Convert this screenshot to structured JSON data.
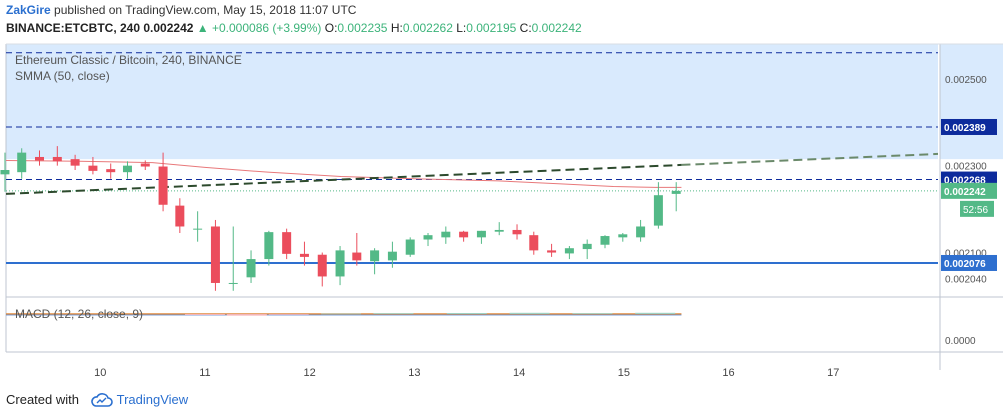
{
  "header": {
    "author": "ZakGire",
    "published": "published on TradingView.com, May 15, 2018 11:07 UTC",
    "symbol": "BINANCE:ETCBTC, 240",
    "last": "0.002242",
    "change": "▲ +0.000086 (+3.99%)",
    "o_label": "O:",
    "o_value": "0.002235",
    "h_label": "H:",
    "h_value": "0.002262",
    "l_label": "L:",
    "l_value": "0.002195",
    "c_label": "C:",
    "c_value": "0.002242"
  },
  "legend": {
    "title": "Ethereum Classic / Bitcoin, 240, BINANCE",
    "smma": "SMMA (50, close)",
    "macd": "MACD (12, 26, close, 9)"
  },
  "footer": {
    "created_with": "Created with",
    "brand": "TradingView"
  },
  "colors": {
    "up": "#53b987",
    "down": "#eb4d5c",
    "smma": "#e8787a",
    "zone": "#d9eafd",
    "level": "#0d2b9c",
    "support": "#2e6fcf",
    "trend": "#2d4a2d",
    "accent": "#2a6fcf"
  },
  "chart_data": {
    "type": "candlestick",
    "title": "Ethereum Classic / Bitcoin, 240, BINANCE",
    "xlabel": "",
    "ylabel": "",
    "ylim": [
      0.002,
      0.00258
    ],
    "y_ticks": [
      "0.002500",
      "0.002300",
      "0.002100",
      "0.002040"
    ],
    "x_ticks": [
      {
        "label": "10",
        "x": 10
      },
      {
        "label": "11",
        "x": 11
      },
      {
        "label": "12",
        "x": 12
      },
      {
        "label": "13",
        "x": 13
      },
      {
        "label": "14",
        "x": 14
      },
      {
        "label": "15",
        "x": 15
      },
      {
        "label": "16",
        "x": 16
      },
      {
        "label": "17",
        "x": 17
      }
    ],
    "xlim": [
      9.1,
      18.0
    ],
    "candles": [
      {
        "x": 9.09,
        "o": 0.00228,
        "h": 0.00233,
        "l": 0.00224,
        "c": 0.00229
      },
      {
        "x": 9.25,
        "o": 0.002285,
        "h": 0.00234,
        "l": 0.00227,
        "c": 0.00233
      },
      {
        "x": 9.42,
        "o": 0.00232,
        "h": 0.002335,
        "l": 0.0023,
        "c": 0.002312
      },
      {
        "x": 9.59,
        "o": 0.00232,
        "h": 0.002345,
        "l": 0.0023,
        "c": 0.00231
      },
      {
        "x": 9.76,
        "o": 0.002315,
        "h": 0.002325,
        "l": 0.00229,
        "c": 0.0023
      },
      {
        "x": 9.93,
        "o": 0.0023,
        "h": 0.00232,
        "l": 0.00228,
        "c": 0.002288
      },
      {
        "x": 10.1,
        "o": 0.002292,
        "h": 0.002305,
        "l": 0.00227,
        "c": 0.002285
      },
      {
        "x": 10.26,
        "o": 0.002285,
        "h": 0.00231,
        "l": 0.00227,
        "c": 0.0023
      },
      {
        "x": 10.43,
        "o": 0.002305,
        "h": 0.002312,
        "l": 0.00229,
        "c": 0.002298
      },
      {
        "x": 10.6,
        "o": 0.002298,
        "h": 0.00233,
        "l": 0.002195,
        "c": 0.00221
      },
      {
        "x": 10.76,
        "o": 0.002208,
        "h": 0.002225,
        "l": 0.002145,
        "c": 0.00216
      },
      {
        "x": 10.93,
        "o": 0.002155,
        "h": 0.002195,
        "l": 0.002125,
        "c": 0.002155
      },
      {
        "x": 11.1,
        "o": 0.00216,
        "h": 0.002175,
        "l": 0.002012,
        "c": 0.00203
      },
      {
        "x": 11.27,
        "o": 0.00203,
        "h": 0.00216,
        "l": 0.002012,
        "c": 0.00203
      },
      {
        "x": 11.44,
        "o": 0.002043,
        "h": 0.002105,
        "l": 0.00203,
        "c": 0.002085
      },
      {
        "x": 11.61,
        "o": 0.002085,
        "h": 0.00215,
        "l": 0.00207,
        "c": 0.002147
      },
      {
        "x": 11.78,
        "o": 0.002147,
        "h": 0.002155,
        "l": 0.002085,
        "c": 0.002097
      },
      {
        "x": 11.95,
        "o": 0.002097,
        "h": 0.002125,
        "l": 0.00207,
        "c": 0.00209
      },
      {
        "x": 12.12,
        "o": 0.002095,
        "h": 0.0021,
        "l": 0.002022,
        "c": 0.002045
      },
      {
        "x": 12.29,
        "o": 0.002045,
        "h": 0.002115,
        "l": 0.002025,
        "c": 0.002105
      },
      {
        "x": 12.45,
        "o": 0.0021,
        "h": 0.002145,
        "l": 0.00207,
        "c": 0.002082
      },
      {
        "x": 12.62,
        "o": 0.00208,
        "h": 0.00211,
        "l": 0.00205,
        "c": 0.002105
      },
      {
        "x": 12.79,
        "o": 0.002082,
        "h": 0.002125,
        "l": 0.002065,
        "c": 0.002102
      },
      {
        "x": 12.96,
        "o": 0.002095,
        "h": 0.002135,
        "l": 0.00209,
        "c": 0.00213
      },
      {
        "x": 13.13,
        "o": 0.00213,
        "h": 0.002145,
        "l": 0.002115,
        "c": 0.00214
      },
      {
        "x": 13.3,
        "o": 0.002135,
        "h": 0.00216,
        "l": 0.00212,
        "c": 0.002148
      },
      {
        "x": 13.47,
        "o": 0.002148,
        "h": 0.00215,
        "l": 0.002125,
        "c": 0.002135
      },
      {
        "x": 13.64,
        "o": 0.002135,
        "h": 0.00215,
        "l": 0.00212,
        "c": 0.00215
      },
      {
        "x": 13.81,
        "o": 0.002148,
        "h": 0.00217,
        "l": 0.00214,
        "c": 0.002152
      },
      {
        "x": 13.98,
        "o": 0.002152,
        "h": 0.002165,
        "l": 0.00213,
        "c": 0.002142
      },
      {
        "x": 14.14,
        "o": 0.00214,
        "h": 0.002148,
        "l": 0.002095,
        "c": 0.002105
      },
      {
        "x": 14.31,
        "o": 0.002105,
        "h": 0.00212,
        "l": 0.00209,
        "c": 0.0021
      },
      {
        "x": 14.48,
        "o": 0.002098,
        "h": 0.002115,
        "l": 0.002085,
        "c": 0.00211
      },
      {
        "x": 14.65,
        "o": 0.002108,
        "h": 0.00213,
        "l": 0.002085,
        "c": 0.00212
      },
      {
        "x": 14.82,
        "o": 0.002118,
        "h": 0.00214,
        "l": 0.00211,
        "c": 0.002138
      },
      {
        "x": 14.99,
        "o": 0.002135,
        "h": 0.002145,
        "l": 0.002125,
        "c": 0.002142
      },
      {
        "x": 15.16,
        "o": 0.002135,
        "h": 0.002175,
        "l": 0.002125,
        "c": 0.00216
      },
      {
        "x": 15.33,
        "o": 0.002162,
        "h": 0.002262,
        "l": 0.002155,
        "c": 0.002232
      },
      {
        "x": 15.5,
        "o": 0.002235,
        "h": 0.002262,
        "l": 0.002195,
        "c": 0.002242
      }
    ],
    "smma_line": {
      "name": "SMMA (50, close)",
      "points": [
        [
          9.1,
          0.002312
        ],
        [
          9.8,
          0.00231
        ],
        [
          10.5,
          0.002307
        ],
        [
          11.0,
          0.002296
        ],
        [
          11.6,
          0.002285
        ],
        [
          12.3,
          0.002275
        ],
        [
          13.0,
          0.00227
        ],
        [
          13.8,
          0.002265
        ],
        [
          14.4,
          0.002258
        ],
        [
          14.9,
          0.002252
        ],
        [
          15.3,
          0.00225
        ],
        [
          15.55,
          0.00225
        ]
      ]
    },
    "trend_line": {
      "name": "trend",
      "points": [
        [
          9.1,
          0.002235
        ],
        [
          18.0,
          0.002327
        ]
      ],
      "solid_until": 15.55
    },
    "resistance_zone": {
      "from": 0.002315,
      "to": 0.00258
    },
    "levels": [
      {
        "name": "top-dashed",
        "value": 0.00256,
        "label": ""
      },
      {
        "name": "resistance-level",
        "value": 0.002389,
        "label": "0.002389"
      },
      {
        "name": "current-level",
        "value": 0.002268,
        "label": "0.002268"
      }
    ],
    "support_line": {
      "value": 0.002076,
      "label": "0.002076"
    },
    "price_line": {
      "value": 0.002242,
      "label": "0.002242",
      "countdown": "52:56"
    },
    "macd": {
      "title": "MACD (12, 26, close, 9)",
      "tick": "0.0000",
      "hist": [
        [
          11.0,
          -0.5
        ],
        [
          11.4,
          -0.8
        ],
        [
          11.8,
          -0.4
        ],
        [
          12.3,
          0.2
        ],
        [
          12.8,
          0.4
        ],
        [
          13.5,
          0.5
        ],
        [
          14.1,
          0.6
        ],
        [
          14.7,
          0.4
        ],
        [
          15.3,
          0.6
        ]
      ]
    }
  }
}
